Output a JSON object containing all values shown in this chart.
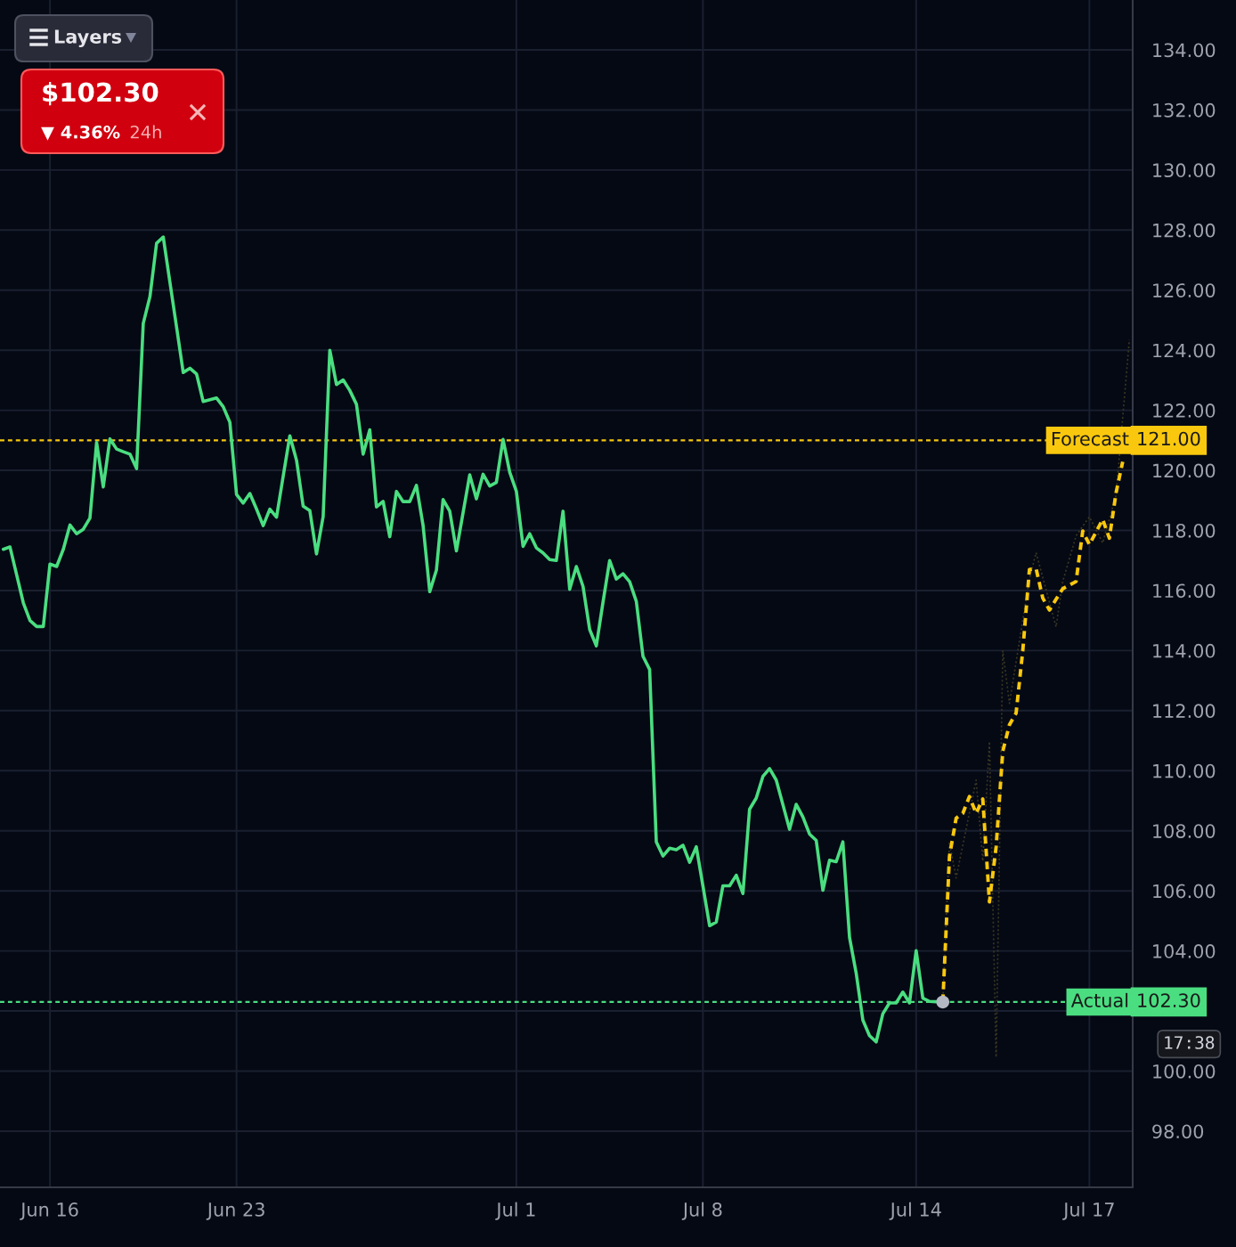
{
  "chart_data": {
    "type": "line",
    "categories": [
      null,
      null,
      null,
      null,
      null,
      null,
      null,
      "Jun 16",
      null,
      null,
      null,
      null,
      null,
      null,
      null,
      null,
      null,
      null,
      null,
      null,
      null,
      null,
      null,
      null,
      null,
      null,
      null,
      null,
      null,
      null,
      null,
      null,
      null,
      null,
      null,
      "Jun 23",
      null,
      null,
      null,
      null,
      null,
      null,
      null,
      null,
      null,
      null,
      null,
      null,
      null,
      null,
      null,
      null,
      null,
      null,
      null,
      null,
      null,
      null,
      null,
      null,
      null,
      null,
      null,
      null,
      null,
      null,
      null,
      null,
      null,
      null,
      null,
      null,
      null,
      null,
      null,
      null,
      null,
      "Jul 1",
      null,
      null,
      null,
      null,
      null,
      null,
      null,
      null,
      null,
      null,
      null,
      null,
      null,
      null,
      null,
      null,
      null,
      null,
      null,
      null,
      null,
      null,
      null,
      null,
      null,
      null,
      null,
      "Jul 8",
      null,
      null,
      null,
      null,
      null,
      null,
      null,
      null,
      null,
      null,
      null,
      null,
      null,
      null,
      null,
      null,
      null,
      null,
      null,
      null,
      null,
      null,
      null,
      null,
      null,
      null,
      null,
      null,
      null,
      null,
      null,
      "Jul 14",
      null,
      null,
      null,
      null,
      null,
      null,
      null,
      null,
      null,
      null,
      null,
      null,
      null,
      null,
      null,
      null,
      null,
      null,
      null,
      null,
      null,
      null,
      null,
      null,
      null,
      "Jul 17",
      null,
      null,
      null,
      null,
      null,
      null
    ],
    "ylim": [
      96.13,
      135.66
    ],
    "yticks": [
      {
        "value": 98,
        "label": "98.00"
      },
      {
        "value": 100,
        "label": "100.00"
      },
      {
        "value": 102,
        "label": null
      },
      {
        "value": 104,
        "label": "104.00"
      },
      {
        "value": 106,
        "label": "106.00"
      },
      {
        "value": 108,
        "label": "108.00"
      },
      {
        "value": 110,
        "label": "110.00"
      },
      {
        "value": 112,
        "label": "112.00"
      },
      {
        "value": 114,
        "label": "114.00"
      },
      {
        "value": 116,
        "label": "116.00"
      },
      {
        "value": 118,
        "label": "118.00"
      },
      {
        "value": 120,
        "label": "120.00"
      },
      {
        "value": 122,
        "label": "122.00"
      },
      {
        "value": 124,
        "label": "124.00"
      },
      {
        "value": 126,
        "label": "126.00"
      },
      {
        "value": 128,
        "label": "128.00"
      },
      {
        "value": 130,
        "label": "130.00"
      },
      {
        "value": 132,
        "label": "132.00"
      },
      {
        "value": 134,
        "label": "134.00"
      }
    ],
    "grid": true,
    "series": [
      {
        "line_style": "dotted",
        "color": "#3a3722",
        "values": [
          null,
          null,
          null,
          null,
          null,
          null,
          null,
          null,
          null,
          null,
          null,
          null,
          null,
          null,
          null,
          null,
          null,
          null,
          null,
          null,
          null,
          null,
          null,
          null,
          null,
          null,
          null,
          null,
          null,
          null,
          null,
          null,
          null,
          null,
          null,
          null,
          null,
          null,
          null,
          null,
          null,
          null,
          null,
          null,
          null,
          null,
          null,
          null,
          null,
          null,
          null,
          null,
          null,
          null,
          null,
          null,
          null,
          null,
          null,
          null,
          null,
          null,
          null,
          null,
          null,
          null,
          null,
          null,
          null,
          null,
          null,
          null,
          null,
          null,
          null,
          null,
          null,
          null,
          null,
          null,
          null,
          null,
          null,
          null,
          null,
          null,
          null,
          null,
          null,
          null,
          null,
          null,
          null,
          null,
          null,
          null,
          null,
          null,
          null,
          null,
          null,
          null,
          null,
          null,
          null,
          null,
          null,
          null,
          null,
          null,
          null,
          null,
          null,
          null,
          null,
          null,
          null,
          null,
          null,
          null,
          null,
          null,
          null,
          null,
          null,
          null,
          null,
          null,
          null,
          null,
          null,
          null,
          null,
          null,
          null,
          null,
          null,
          null,
          null,
          null,
          null,
          102.3,
          107.62,
          106.43,
          107.52,
          108.6,
          109.69,
          106.99,
          110.97,
          100.46,
          113.99,
          112.24,
          113.62,
          115.0,
          116.38,
          117.26,
          116.44,
          115.61,
          114.79,
          116.3,
          117.06,
          117.82,
          118.14,
          118.45,
          118.02,
          117.58,
          118.38,
          119.17,
          121.76,
          124.35
        ]
      },
      {
        "line_style": "dashed",
        "color": "#f9c80e",
        "values": [
          null,
          null,
          null,
          null,
          null,
          null,
          null,
          null,
          null,
          null,
          null,
          null,
          null,
          null,
          null,
          null,
          null,
          null,
          null,
          null,
          null,
          null,
          null,
          null,
          null,
          null,
          null,
          null,
          null,
          null,
          null,
          null,
          null,
          null,
          null,
          null,
          null,
          null,
          null,
          null,
          null,
          null,
          null,
          null,
          null,
          null,
          null,
          null,
          null,
          null,
          null,
          null,
          null,
          null,
          null,
          null,
          null,
          null,
          null,
          null,
          null,
          null,
          null,
          null,
          null,
          null,
          null,
          null,
          null,
          null,
          null,
          null,
          null,
          null,
          null,
          null,
          null,
          null,
          null,
          null,
          null,
          null,
          null,
          null,
          null,
          null,
          null,
          null,
          null,
          null,
          null,
          null,
          null,
          null,
          null,
          null,
          null,
          null,
          null,
          null,
          null,
          null,
          null,
          null,
          null,
          null,
          null,
          null,
          null,
          null,
          null,
          null,
          null,
          null,
          null,
          null,
          null,
          null,
          null,
          null,
          null,
          null,
          null,
          null,
          null,
          null,
          null,
          null,
          null,
          null,
          null,
          null,
          null,
          null,
          null,
          null,
          null,
          null,
          null,
          null,
          null,
          102.3,
          107.15,
          108.42,
          108.58,
          109.14,
          108.58,
          109.06,
          105.63,
          107.46,
          110.65,
          111.53,
          111.92,
          113.99,
          116.7,
          116.73,
          115.75,
          115.35,
          115.71,
          116.06,
          116.18,
          116.3,
          117.98,
          117.53,
          117.95,
          118.37,
          117.74,
          119.25,
          120.29,
          null
        ]
      },
      {
        "line_style": "solid",
        "color": "#4ade80",
        "values": [
          117.37,
          117.45,
          116.52,
          115.59,
          115.0,
          114.8,
          114.8,
          116.88,
          116.8,
          117.37,
          118.18,
          117.89,
          118.04,
          118.41,
          120.93,
          119.45,
          121.05,
          120.71,
          120.62,
          120.54,
          120.06,
          124.89,
          125.78,
          127.56,
          127.77,
          126.27,
          124.77,
          123.26,
          123.4,
          123.21,
          122.29,
          122.35,
          122.41,
          122.12,
          121.6,
          119.2,
          118.91,
          119.23,
          118.71,
          118.16,
          118.71,
          118.44,
          119.8,
          121.15,
          120.34,
          118.81,
          118.66,
          117.22,
          118.46,
          124.0,
          122.86,
          123.01,
          122.66,
          122.2,
          120.54,
          121.35,
          118.78,
          118.97,
          117.79,
          119.3,
          118.96,
          118.96,
          119.5,
          118.16,
          115.96,
          116.68,
          119.03,
          118.64,
          117.32,
          118.59,
          119.85,
          119.05,
          119.87,
          119.48,
          119.6,
          121.03,
          119.94,
          119.3,
          117.47,
          117.89,
          117.42,
          117.25,
          117.03,
          117.0,
          118.64,
          116.04,
          116.8,
          116.14,
          114.7,
          114.16,
          115.61,
          117.0,
          116.38,
          116.56,
          116.29,
          115.64,
          113.81,
          113.37,
          107.63,
          107.16,
          107.42,
          107.37,
          107.52,
          106.95,
          107.47,
          106.16,
          104.84,
          104.96,
          106.17,
          106.17,
          106.52,
          105.91,
          108.72,
          109.09,
          109.81,
          110.07,
          109.69,
          108.87,
          108.05,
          108.88,
          108.46,
          107.89,
          107.68,
          106.02,
          107.02,
          106.97,
          107.63,
          104.45,
          103.26,
          101.7,
          101.18,
          100.97,
          101.91,
          102.27,
          102.27,
          102.63,
          102.27,
          104.01,
          102.43,
          102.32,
          102.31,
          102.3,
          null,
          null,
          null,
          null,
          null,
          null,
          null,
          null,
          null,
          null,
          null,
          null,
          null,
          null,
          null,
          null,
          null,
          null,
          null,
          null,
          null,
          null,
          null,
          null,
          null,
          null,
          null,
          null
        ]
      },
      {
        "type": "scatter",
        "color": "#b4b8c2",
        "values": [
          null,
          null,
          null,
          null,
          null,
          null,
          null,
          null,
          null,
          null,
          null,
          null,
          null,
          null,
          null,
          null,
          null,
          null,
          null,
          null,
          null,
          null,
          null,
          null,
          null,
          null,
          null,
          null,
          null,
          null,
          null,
          null,
          null,
          null,
          null,
          null,
          null,
          null,
          null,
          null,
          null,
          null,
          null,
          null,
          null,
          null,
          null,
          null,
          null,
          null,
          null,
          null,
          null,
          null,
          null,
          null,
          null,
          null,
          null,
          null,
          null,
          null,
          null,
          null,
          null,
          null,
          null,
          null,
          null,
          null,
          null,
          null,
          null,
          null,
          null,
          null,
          null,
          null,
          null,
          null,
          null,
          null,
          null,
          null,
          null,
          null,
          null,
          null,
          null,
          null,
          null,
          null,
          null,
          null,
          null,
          null,
          null,
          null,
          null,
          null,
          null,
          null,
          null,
          null,
          null,
          null,
          null,
          null,
          null,
          null,
          null,
          null,
          null,
          null,
          null,
          null,
          null,
          null,
          null,
          null,
          null,
          null,
          null,
          null,
          null,
          null,
          null,
          null,
          null,
          null,
          null,
          null,
          null,
          null,
          null,
          null,
          null,
          null,
          null,
          null,
          null,
          102.3,
          null,
          null,
          null,
          null,
          null,
          null,
          null,
          null,
          null,
          null,
          null,
          null,
          null,
          null,
          null,
          null,
          null,
          null,
          null,
          null,
          null,
          null,
          null,
          null,
          null,
          null,
          null,
          null
        ]
      }
    ],
    "ref_lines": [
      {
        "axis": "y",
        "value": 121,
        "label": "Forecast",
        "color": "#f9c80e",
        "line_style": "dotted"
      },
      {
        "axis": "y",
        "value": 102.3,
        "label": "Actual",
        "color": "#4ade80",
        "line_style": "dotted"
      }
    ],
    "annotations": [
      "Layers",
      "$102.30",
      "▼ 4.36%",
      "24h",
      "121.00",
      "102.30",
      "17:38"
    ]
  }
}
